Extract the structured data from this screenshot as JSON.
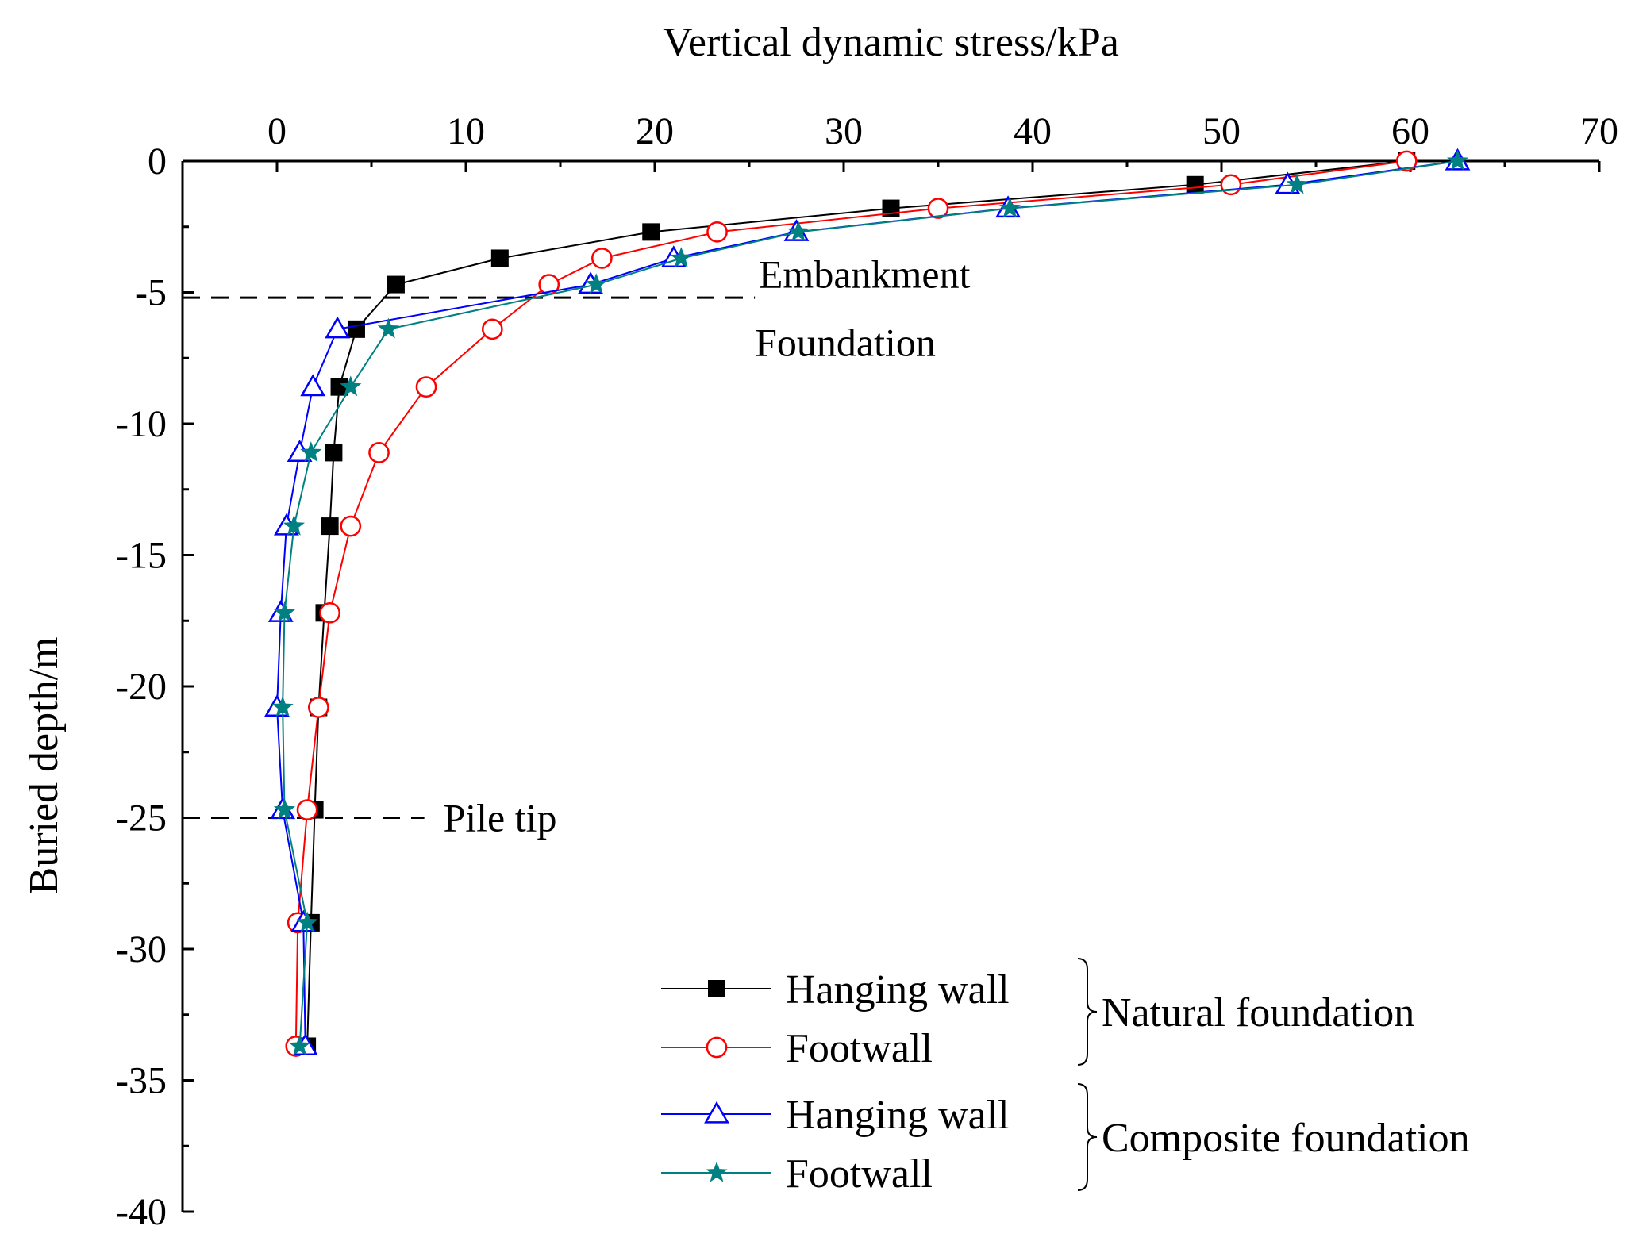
{
  "chart_data": {
    "type": "line",
    "title": "",
    "xlabel": "Vertical dynamic stress/kPa",
    "ylabel": "Buried depth/m",
    "xlim": [
      -5,
      70
    ],
    "ylim": [
      -40,
      0
    ],
    "x_ticks": [
      0,
      10,
      20,
      30,
      40,
      50,
      60,
      70
    ],
    "y_ticks": [
      0,
      -5,
      -10,
      -15,
      -20,
      -25,
      -30,
      -35,
      -40
    ],
    "x_tick_labels": [
      "0",
      "10",
      "20",
      "30",
      "40",
      "50",
      "60",
      "70"
    ],
    "y_tick_labels": [
      "0",
      "-5",
      "-10",
      "-15",
      "-20",
      "-25",
      "-30",
      "-35",
      "-40"
    ],
    "x_axis_position": "top",
    "grid": false,
    "series": [
      {
        "name": "Hanging wall",
        "group": "Natural foundation",
        "color": "#000000",
        "marker": "filled-square",
        "points": [
          [
            59.8,
            0
          ],
          [
            48.6,
            -0.9
          ],
          [
            32.5,
            -1.8
          ],
          [
            19.8,
            -2.7
          ],
          [
            11.8,
            -3.7
          ],
          [
            6.3,
            -4.7
          ],
          [
            4.2,
            -6.4
          ],
          [
            3.3,
            -8.6
          ],
          [
            3.0,
            -11.1
          ],
          [
            2.8,
            -13.9
          ],
          [
            2.5,
            -17.2
          ],
          [
            2.2,
            -20.8
          ],
          [
            2.0,
            -24.7
          ],
          [
            1.8,
            -29.0
          ],
          [
            1.6,
            -33.7
          ]
        ]
      },
      {
        "name": "Footwall",
        "group": "Natural foundation",
        "color": "#ff0000",
        "marker": "open-circle",
        "points": [
          [
            59.8,
            0
          ],
          [
            50.5,
            -0.9
          ],
          [
            35.0,
            -1.8
          ],
          [
            23.3,
            -2.7
          ],
          [
            17.2,
            -3.7
          ],
          [
            14.4,
            -4.7
          ],
          [
            11.4,
            -6.4
          ],
          [
            7.9,
            -8.6
          ],
          [
            5.4,
            -11.1
          ],
          [
            3.9,
            -13.9
          ],
          [
            2.8,
            -17.2
          ],
          [
            2.2,
            -20.8
          ],
          [
            1.6,
            -24.7
          ],
          [
            1.1,
            -29.0
          ],
          [
            1.0,
            -33.7
          ]
        ]
      },
      {
        "name": "Hanging wall",
        "group": "Composite foundation",
        "color": "#0000ff",
        "marker": "open-triangle",
        "points": [
          [
            62.5,
            0
          ],
          [
            53.5,
            -0.9
          ],
          [
            38.7,
            -1.8
          ],
          [
            27.5,
            -2.7
          ],
          [
            21.0,
            -3.7
          ],
          [
            16.6,
            -4.7
          ],
          [
            3.2,
            -6.4
          ],
          [
            1.9,
            -8.6
          ],
          [
            1.2,
            -11.1
          ],
          [
            0.5,
            -13.9
          ],
          [
            0.2,
            -17.2
          ],
          [
            0.0,
            -20.8
          ],
          [
            0.3,
            -24.7
          ],
          [
            1.4,
            -29.0
          ],
          [
            1.5,
            -33.7
          ]
        ]
      },
      {
        "name": "Footwall",
        "group": "Composite foundation",
        "color": "#008080",
        "marker": "filled-star",
        "points": [
          [
            62.5,
            0
          ],
          [
            54.0,
            -0.9
          ],
          [
            38.8,
            -1.8
          ],
          [
            27.6,
            -2.7
          ],
          [
            21.4,
            -3.7
          ],
          [
            16.9,
            -4.7
          ],
          [
            5.9,
            -6.4
          ],
          [
            3.9,
            -8.6
          ],
          [
            1.8,
            -11.1
          ],
          [
            0.9,
            -13.9
          ],
          [
            0.4,
            -17.2
          ],
          [
            0.3,
            -20.8
          ],
          [
            0.4,
            -24.7
          ],
          [
            1.6,
            -29.0
          ],
          [
            1.2,
            -33.7
          ]
        ]
      }
    ],
    "reference_lines": [
      {
        "depth": -5.2,
        "x_from": -5,
        "x_to": 25.3
      },
      {
        "depth": -25.0,
        "x_from": -5,
        "x_to": 7.8
      }
    ],
    "annotations": [
      {
        "text": "Embankment",
        "x": 25.5,
        "y": -4.3
      },
      {
        "text": "Foundation",
        "x": 25.3,
        "y": -6.9
      },
      {
        "text": "Pile tip",
        "x": 8.8,
        "y": -25.0
      }
    ],
    "legend": {
      "placement": "bottom-right",
      "groups": [
        {
          "label": "Natural foundation",
          "series": [
            0,
            1
          ]
        },
        {
          "label": "Composite foundation",
          "series": [
            2,
            3
          ]
        }
      ]
    }
  }
}
